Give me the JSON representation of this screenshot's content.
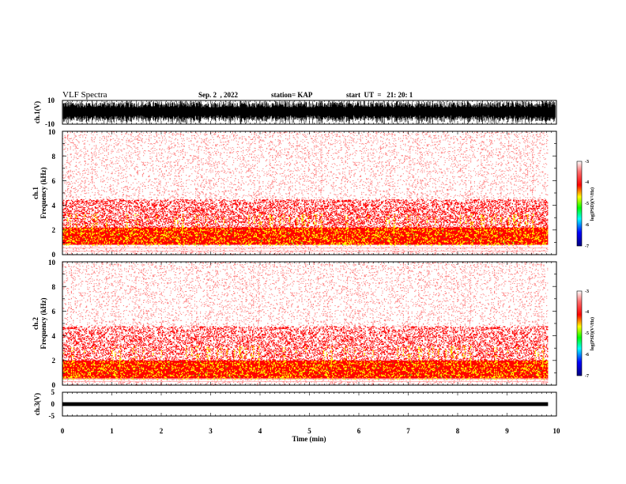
{
  "header": {
    "title": "VLF Spectra",
    "date": "Sep. 2  , 2022",
    "station": "station= KAP",
    "start": "start  UT  =   21: 20: 1"
  },
  "colors": {
    "spectrum_scale": [
      "#ffffff",
      "#ff7070",
      "#ff0000",
      "#ffff00",
      "#00ff00",
      "#00ffff",
      "#0000ff",
      "#000080"
    ],
    "trace": "#000000"
  },
  "chart_data": [
    {
      "type": "line",
      "ylabel": "ch.1(V)",
      "ylim": [
        -10,
        10
      ],
      "yticks": [
        "10",
        "-10"
      ],
      "xlim": [
        0,
        10
      ],
      "description_style": "dense broadband waveform filling most of the range"
    },
    {
      "type": "heatmap",
      "ylabel": "ch.1\nFrequency  (kHz)",
      "ylabel_line1": "ch.1",
      "ylabel_line2": "Frequency  (kHz)",
      "ylim": [
        0,
        10
      ],
      "yticks": [
        "0",
        "2",
        "4",
        "6",
        "8",
        "10"
      ],
      "xlim": [
        0,
        9.83
      ],
      "colorbar": {
        "label": "log(PSD)(V²/Hz)",
        "range": [
          -7,
          -3
        ],
        "ticks": [
          "-3",
          "-4",
          "-5",
          "-6",
          "-7"
        ]
      },
      "strong_band_khz": [
        0.8,
        2.2
      ],
      "medium_band_khz": [
        2.2,
        4.5
      ]
    },
    {
      "type": "heatmap",
      "ylabel": "ch.2\nFrequency  (kHz)",
      "ylabel_line1": "ch.2",
      "ylabel_line2": "Frequency  (kHz)",
      "ylim": [
        0,
        10
      ],
      "yticks": [
        "0",
        "2",
        "4",
        "6",
        "8",
        "10"
      ],
      "xlim": [
        0,
        9.83
      ],
      "colorbar": {
        "label": "log(PSD)(V²/Hz)",
        "range": [
          -7,
          -3
        ],
        "ticks": [
          "-3",
          "-4",
          "-5",
          "-6",
          "-7"
        ]
      },
      "strong_band_khz": [
        0.5,
        2.0
      ],
      "medium_band_khz": [
        2.0,
        4.8
      ]
    },
    {
      "type": "line",
      "ylabel": "ch.3(V)",
      "ylim": [
        -5,
        5
      ],
      "yticks": [
        "5",
        "0",
        "-5"
      ],
      "xlim": [
        0,
        10
      ],
      "xlabel": "Time  (min)",
      "xticks": [
        "0",
        "1",
        "2",
        "3",
        "4",
        "5",
        "6",
        "7",
        "8",
        "9",
        "10"
      ],
      "level": 0
    }
  ]
}
